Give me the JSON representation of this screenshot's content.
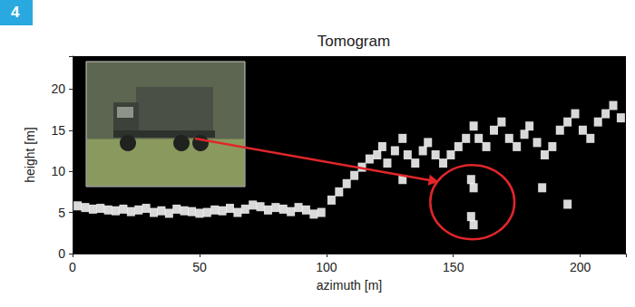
{
  "chart_data": {
    "type": "scatter",
    "panel_label": "4",
    "title": "Tomogram",
    "x_label": "azimuth [m]",
    "y_label": "height [m]",
    "xlim": [
      0,
      218
    ],
    "ylim": [
      0,
      24
    ],
    "xticks": [
      0,
      50,
      100,
      150,
      200
    ],
    "yticks": [
      0,
      5,
      10,
      15,
      20
    ],
    "grid": false,
    "series": [
      {
        "color": "#ffffff",
        "x": [
          2,
          5,
          8,
          11,
          14,
          17,
          20,
          23,
          26,
          29,
          32,
          35,
          38,
          41,
          44,
          47,
          50,
          53,
          56,
          59,
          62,
          65,
          68,
          71,
          74,
          77,
          80,
          83,
          86,
          89,
          92,
          95,
          98,
          102,
          105,
          108,
          111,
          114,
          117,
          120,
          122,
          124,
          127,
          130,
          132,
          135,
          138,
          140,
          143,
          146,
          149,
          152,
          155,
          158,
          160,
          163,
          166,
          169,
          172,
          175,
          178,
          180,
          183,
          186,
          189,
          192,
          195,
          198,
          201,
          204,
          207,
          210,
          213,
          216,
          130,
          185,
          195
        ],
        "values": [
          5.8,
          5.6,
          5.4,
          5.5,
          5.3,
          5.2,
          5.4,
          5.1,
          5.3,
          5.5,
          5.0,
          5.2,
          4.9,
          5.4,
          5.2,
          5.1,
          4.9,
          5.0,
          5.3,
          5.2,
          5.5,
          5.0,
          5.4,
          5.9,
          5.7,
          5.3,
          5.6,
          5.4,
          5.1,
          5.6,
          5.3,
          4.8,
          5.0,
          6.5,
          7.5,
          8.5,
          9.5,
          10.5,
          11.5,
          12,
          13,
          11,
          12.5,
          14,
          12,
          11,
          12.5,
          13.5,
          12,
          11,
          12,
          13,
          14,
          15.5,
          14,
          13,
          15,
          16,
          14,
          13,
          14.5,
          15.5,
          13.5,
          12,
          13,
          15,
          16,
          17,
          15,
          14,
          16,
          17,
          18,
          16.5,
          9,
          8,
          6
        ]
      },
      {
        "color": "#ffffff",
        "x": [
          157,
          158,
          157,
          158
        ],
        "values": [
          9,
          8,
          4.5,
          3.5
        ]
      }
    ]
  }
}
